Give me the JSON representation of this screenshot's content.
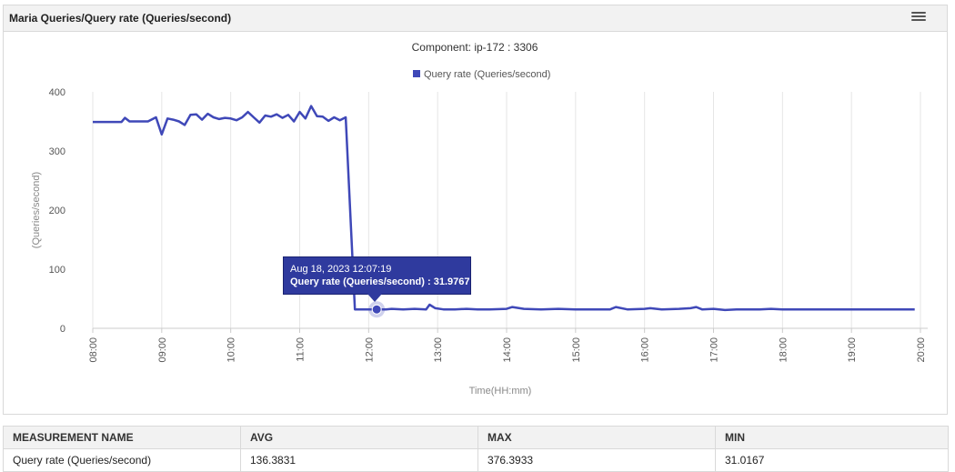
{
  "panel": {
    "title": "Maria Queries/Query rate (Queries/second)"
  },
  "chart_data": {
    "type": "line",
    "title": "Component: ip-172                 : 3306",
    "xlabel": "Time(HH:mm)",
    "ylabel": "(Queries/second)",
    "ylim": [
      0,
      400
    ],
    "yticks": [
      0,
      100,
      200,
      300,
      400
    ],
    "xlim": [
      "08:00",
      "20:00"
    ],
    "xticks": [
      "08:00",
      "09:00",
      "10:00",
      "11:00",
      "12:00",
      "13:00",
      "14:00",
      "15:00",
      "16:00",
      "17:00",
      "18:00",
      "19:00",
      "20:00"
    ],
    "legend_position": "top-center",
    "grid": true,
    "series": [
      {
        "name": "Query rate (Queries/second)",
        "color": "#3f48b8",
        "points": [
          [
            "08:00",
            349
          ],
          [
            "08:10",
            349
          ],
          [
            "08:20",
            349
          ],
          [
            "08:25",
            349
          ],
          [
            "08:28",
            356
          ],
          [
            "08:32",
            350
          ],
          [
            "08:40",
            350
          ],
          [
            "08:48",
            350
          ],
          [
            "08:55",
            357
          ],
          [
            "09:00",
            328
          ],
          [
            "09:05",
            355
          ],
          [
            "09:10",
            353
          ],
          [
            "09:15",
            350
          ],
          [
            "09:20",
            344
          ],
          [
            "09:25",
            361
          ],
          [
            "09:30",
            362
          ],
          [
            "09:35",
            353
          ],
          [
            "09:40",
            363
          ],
          [
            "09:45",
            357
          ],
          [
            "09:50",
            354
          ],
          [
            "09:55",
            356
          ],
          [
            "10:00",
            355
          ],
          [
            "10:05",
            352
          ],
          [
            "10:10",
            357
          ],
          [
            "10:15",
            366
          ],
          [
            "10:20",
            357
          ],
          [
            "10:25",
            348
          ],
          [
            "10:30",
            360
          ],
          [
            "10:35",
            358
          ],
          [
            "10:40",
            362
          ],
          [
            "10:45",
            356
          ],
          [
            "10:50",
            361
          ],
          [
            "10:55",
            350
          ],
          [
            "11:00",
            366
          ],
          [
            "11:05",
            355
          ],
          [
            "11:10",
            376
          ],
          [
            "11:15",
            359
          ],
          [
            "11:20",
            358
          ],
          [
            "11:25",
            351
          ],
          [
            "11:30",
            357
          ],
          [
            "11:35",
            352
          ],
          [
            "11:40",
            357
          ],
          [
            "11:48",
            32
          ],
          [
            "11:55",
            32
          ],
          [
            "12:00",
            32
          ],
          [
            "12:07",
            31.98
          ],
          [
            "12:15",
            32
          ],
          [
            "12:20",
            33
          ],
          [
            "12:30",
            32
          ],
          [
            "12:40",
            33
          ],
          [
            "12:50",
            32
          ],
          [
            "12:53",
            40
          ],
          [
            "12:58",
            34
          ],
          [
            "13:05",
            32
          ],
          [
            "13:15",
            32
          ],
          [
            "13:25",
            33
          ],
          [
            "13:35",
            32
          ],
          [
            "13:45",
            32
          ],
          [
            "14:00",
            33
          ],
          [
            "14:05",
            36
          ],
          [
            "14:15",
            33
          ],
          [
            "14:30",
            32
          ],
          [
            "14:45",
            33
          ],
          [
            "15:00",
            32
          ],
          [
            "15:15",
            32
          ],
          [
            "15:30",
            32
          ],
          [
            "15:35",
            36
          ],
          [
            "15:45",
            32
          ],
          [
            "16:00",
            33
          ],
          [
            "16:05",
            34
          ],
          [
            "16:15",
            32
          ],
          [
            "16:30",
            33
          ],
          [
            "16:40",
            34
          ],
          [
            "16:45",
            36
          ],
          [
            "16:50",
            32
          ],
          [
            "17:00",
            33
          ],
          [
            "17:10",
            31
          ],
          [
            "17:20",
            32
          ],
          [
            "17:30",
            32
          ],
          [
            "17:40",
            32
          ],
          [
            "17:50",
            33
          ],
          [
            "18:00",
            32
          ],
          [
            "18:15",
            32
          ],
          [
            "18:30",
            32
          ],
          [
            "18:45",
            32
          ],
          [
            "19:00",
            32
          ],
          [
            "19:15",
            32
          ],
          [
            "19:30",
            32
          ],
          [
            "19:45",
            32
          ],
          [
            "19:55",
            32
          ]
        ]
      }
    ],
    "tooltip": {
      "date_line": "Aug 18, 2023 12:07:19",
      "value_line": "Query rate (Queries/second) : 31.9767",
      "point_time": "12:07",
      "point_value": 31.9767
    }
  },
  "summary_table": {
    "headers": [
      "MEASUREMENT NAME",
      "AVG",
      "MAX",
      "MIN"
    ],
    "rows": [
      [
        "Query rate (Queries/second)",
        "136.3831",
        "376.3933",
        "31.0167"
      ]
    ]
  }
}
